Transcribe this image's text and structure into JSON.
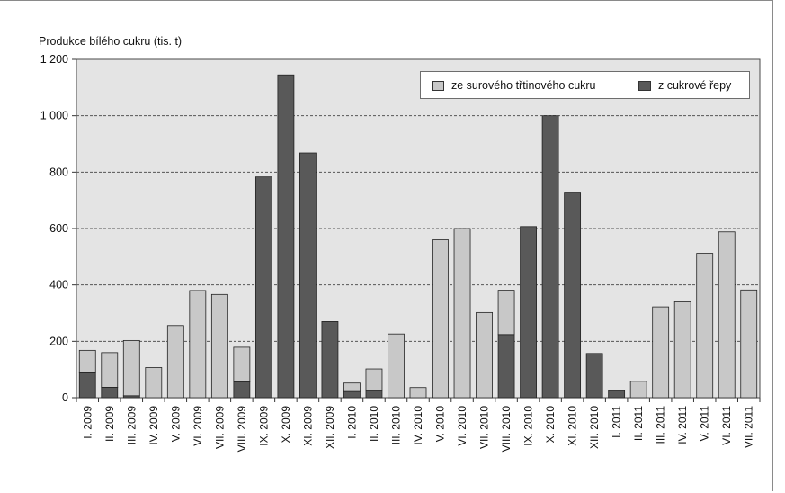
{
  "chart_data": {
    "type": "bar",
    "stacked": true,
    "title": "Produkce bílého cukru (tis. t)",
    "ylim": [
      0,
      1200
    ],
    "yticks": [
      "0",
      "200",
      "400",
      "600",
      "800",
      "1 000",
      "1 200"
    ],
    "ytick_values": [
      0,
      200,
      400,
      600,
      800,
      1000,
      1200
    ],
    "grid": "horizontal dashed",
    "legend_position": "top-right",
    "categories": [
      "I. 2009",
      "II. 2009",
      "III. 2009",
      "IV. 2009",
      "V. 2009",
      "VI. 2009",
      "VII. 2009",
      "VIII. 2009",
      "IX. 2009",
      "X. 2009",
      "XI. 2009",
      "XII. 2009",
      "I. 2010",
      "II. 2010",
      "III. 2010",
      "IV. 2010",
      "V. 2010",
      "VI. 2010",
      "VII. 2010",
      "VIII. 2010",
      "IX. 2010",
      "X. 2010",
      "XI. 2010",
      "XII. 2010",
      "I. 2011",
      "II. 2011",
      "III. 2011",
      "IV. 2011",
      "V. 2011",
      "VI. 2011",
      "VII. 2011"
    ],
    "series": [
      {
        "name": "z cukrové řepy",
        "color": "#595959",
        "values": [
          88,
          37,
          7,
          0,
          0,
          0,
          0,
          56,
          783,
          1145,
          868,
          270,
          22,
          25,
          0,
          0,
          0,
          0,
          0,
          224,
          607,
          1000,
          729,
          157,
          25,
          0,
          0,
          0,
          0,
          0,
          0
        ]
      },
      {
        "name": "ze surového třtinového cukru",
        "color": "#c8c8c8",
        "values": [
          80,
          123,
          196,
          107,
          256,
          380,
          366,
          123,
          0,
          0,
          0,
          0,
          30,
          77,
          226,
          36,
          560,
          600,
          302,
          157,
          0,
          0,
          0,
          0,
          0,
          58,
          322,
          340,
          512,
          588,
          382
        ]
      }
    ]
  }
}
